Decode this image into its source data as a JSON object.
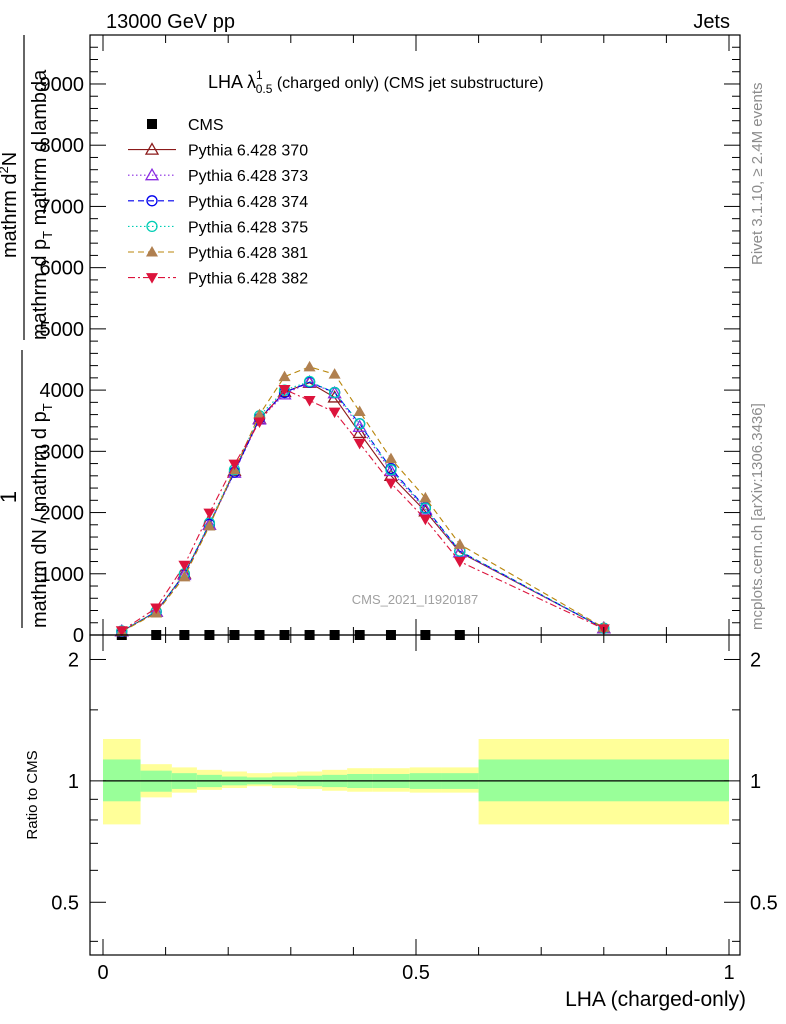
{
  "header": {
    "left": "13000 GeV pp",
    "right": "Jets"
  },
  "side_text": {
    "rivet": "Rivet 3.1.10, ≥ 2.4M events",
    "mcplots": "mcplots.cern.ch [arXiv:1306.3436]"
  },
  "chart_data": [
    {
      "type": "line",
      "title_parts": {
        "main": "LHA λ",
        "sup": "1",
        "sub": "0.5",
        "rest": " (charged only) (CMS jet substructure)"
      },
      "ylabel_parts": {
        "one": "1",
        "denominator": "mathrm dN / mathrm d p",
        "denominator_sub": "T",
        "numerator": "mathrm d",
        "numerator_sup": "2",
        "numerator_rest": "N",
        "numerator_line2": "mathrm d p",
        "numerator_line2_sub": "T",
        "numerator_line2_rest": " mathrm d lambda"
      },
      "watermark": "CMS_2021_I1920187",
      "xlim": [
        0,
        1
      ],
      "ylim": [
        0,
        9800
      ],
      "yticks_major": [
        0,
        1000,
        2000,
        3000,
        4000,
        5000,
        6000,
        7000,
        8000,
        9000
      ],
      "ytick_labels": [
        "0",
        "1000",
        "2000",
        "3000",
        "4000",
        "5000",
        "6000",
        "7000",
        "8000",
        "9000"
      ],
      "legend_position": "top-left",
      "x": [
        0.03,
        0.085,
        0.13,
        0.17,
        0.21,
        0.25,
        0.29,
        0.33,
        0.37,
        0.41,
        0.46,
        0.515,
        0.57,
        0.8
      ],
      "series": [
        {
          "name": "CMS",
          "color": "#000000",
          "marker": "square",
          "line": "none",
          "values": [
            0,
            0,
            0,
            0,
            0,
            0,
            0,
            0,
            0,
            0,
            0,
            0,
            0,
            null
          ]
        },
        {
          "name": "Pythia 6.428 370",
          "color": "#8b1a1a",
          "marker": "triangle-up-open",
          "line": "solid",
          "values": [
            60,
            380,
            1000,
            1800,
            2680,
            3530,
            3970,
            4120,
            3880,
            3300,
            2600,
            2020,
            1350,
            110
          ]
        },
        {
          "name": "Pythia 6.428 373",
          "color": "#8a2be2",
          "marker": "triangle-up-open",
          "line": "dotted",
          "values": [
            60,
            380,
            980,
            1800,
            2650,
            3520,
            3930,
            4130,
            3950,
            3400,
            2680,
            2050,
            1350,
            110
          ]
        },
        {
          "name": "Pythia 6.428 374",
          "color": "#0000ee",
          "marker": "circle-open",
          "line": "dashed",
          "values": [
            60,
            380,
            990,
            1810,
            2660,
            3540,
            3960,
            4130,
            3960,
            3450,
            2720,
            2080,
            1370,
            110
          ]
        },
        {
          "name": "Pythia 6.428 375",
          "color": "#00cdb4",
          "marker": "circle-open",
          "line": "dotted",
          "values": [
            65,
            385,
            1000,
            1830,
            2700,
            3580,
            4000,
            4140,
            3960,
            3450,
            2700,
            2070,
            1370,
            110
          ]
        },
        {
          "name": "Pythia 6.428 381",
          "color": "#b8860b",
          "marker": "triangle-up-filled",
          "markerColor": "#b08050",
          "line": "dashed",
          "values": [
            55,
            360,
            950,
            1780,
            2700,
            3600,
            4220,
            4380,
            4260,
            3650,
            2880,
            2240,
            1480,
            120
          ]
        },
        {
          "name": "Pythia 6.428 382",
          "color": "#dc143c",
          "marker": "triangle-down-filled",
          "line": "dashdot",
          "values": [
            70,
            440,
            1140,
            1990,
            2790,
            3480,
            4010,
            3830,
            3640,
            3130,
            2480,
            1890,
            1200,
            100
          ]
        }
      ]
    },
    {
      "type": "area",
      "ylabel": "Ratio to CMS",
      "xlabel": "LHA (charged-only)",
      "xlim": [
        0,
        1
      ],
      "ylim": [
        0.37,
        2.3
      ],
      "log_scale_y": true,
      "yticks_major": [
        0.5,
        1,
        2
      ],
      "ytick_labels": [
        "0.5",
        "1",
        "2"
      ],
      "xticks_major": [
        0,
        0.5,
        1
      ],
      "xtick_labels": [
        "0",
        "0.5",
        "1"
      ],
      "bin_edges": [
        0,
        0.06,
        0.11,
        0.15,
        0.19,
        0.23,
        0.27,
        0.31,
        0.35,
        0.39,
        0.43,
        0.49,
        0.54,
        0.6,
        1.0
      ],
      "stat_band": {
        "color": "#99ff99",
        "low": [
          0.89,
          0.94,
          0.955,
          0.965,
          0.975,
          0.98,
          0.975,
          0.97,
          0.965,
          0.96,
          0.96,
          0.955,
          0.955,
          0.89
        ],
        "high": [
          1.13,
          1.06,
          1.045,
          1.035,
          1.025,
          1.02,
          1.025,
          1.03,
          1.035,
          1.04,
          1.04,
          1.045,
          1.045,
          1.13
        ]
      },
      "total_band": {
        "color": "#ffff99",
        "low": [
          0.78,
          0.91,
          0.935,
          0.95,
          0.96,
          0.97,
          0.96,
          0.955,
          0.945,
          0.94,
          0.94,
          0.935,
          0.935,
          0.78
        ],
        "high": [
          1.27,
          1.1,
          1.08,
          1.065,
          1.055,
          1.045,
          1.05,
          1.055,
          1.065,
          1.075,
          1.075,
          1.08,
          1.08,
          1.27
        ]
      },
      "reference_line": 1
    }
  ]
}
